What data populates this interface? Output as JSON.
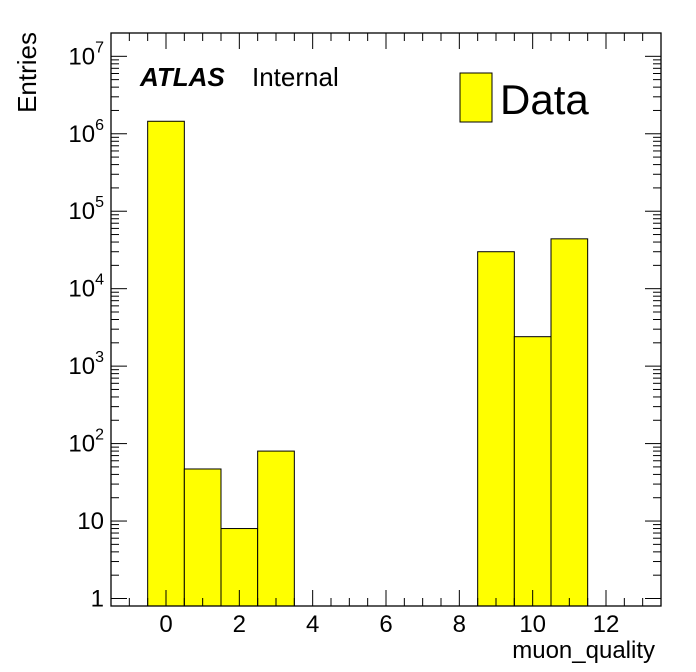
{
  "chart_data": {
    "type": "bar",
    "histogram": true,
    "xlabel": "muon_quality",
    "ylabel": "Entries",
    "xlim": [
      -1.5,
      13.5
    ],
    "ylim": [
      0.8,
      20000000
    ],
    "yscale": "log",
    "xticks": [
      0,
      2,
      4,
      6,
      8,
      10,
      12
    ],
    "xtick_labels": [
      "0",
      "2",
      "4",
      "6",
      "8",
      "10",
      "12"
    ],
    "yticks": [
      {
        "value": 1,
        "base": "1",
        "exp": ""
      },
      {
        "value": 10,
        "base": "10",
        "exp": ""
      },
      {
        "value": 100,
        "base": "10",
        "exp": "2"
      },
      {
        "value": 1000,
        "base": "10",
        "exp": "3"
      },
      {
        "value": 10000,
        "base": "10",
        "exp": "4"
      },
      {
        "value": 100000,
        "base": "10",
        "exp": "5"
      },
      {
        "value": 1000000,
        "base": "10",
        "exp": "6"
      },
      {
        "value": 10000000,
        "base": "10",
        "exp": "7"
      }
    ],
    "bins": [
      {
        "x": 0,
        "value": 1450000
      },
      {
        "x": 1,
        "value": 47
      },
      {
        "x": 2,
        "value": 8
      },
      {
        "x": 3,
        "value": 80
      },
      {
        "x": 9,
        "value": 30000
      },
      {
        "x": 10,
        "value": 2400
      },
      {
        "x": 11,
        "value": 44000
      }
    ],
    "bin_width": 1,
    "fill_color": "#ffff00",
    "edge_color": "#000000",
    "legend": [
      {
        "name": "Data",
        "color": "#ffff00"
      }
    ],
    "legend_position": "top-right",
    "atlas_label": "ATLAS",
    "atlas_sublabel": "Internal"
  }
}
